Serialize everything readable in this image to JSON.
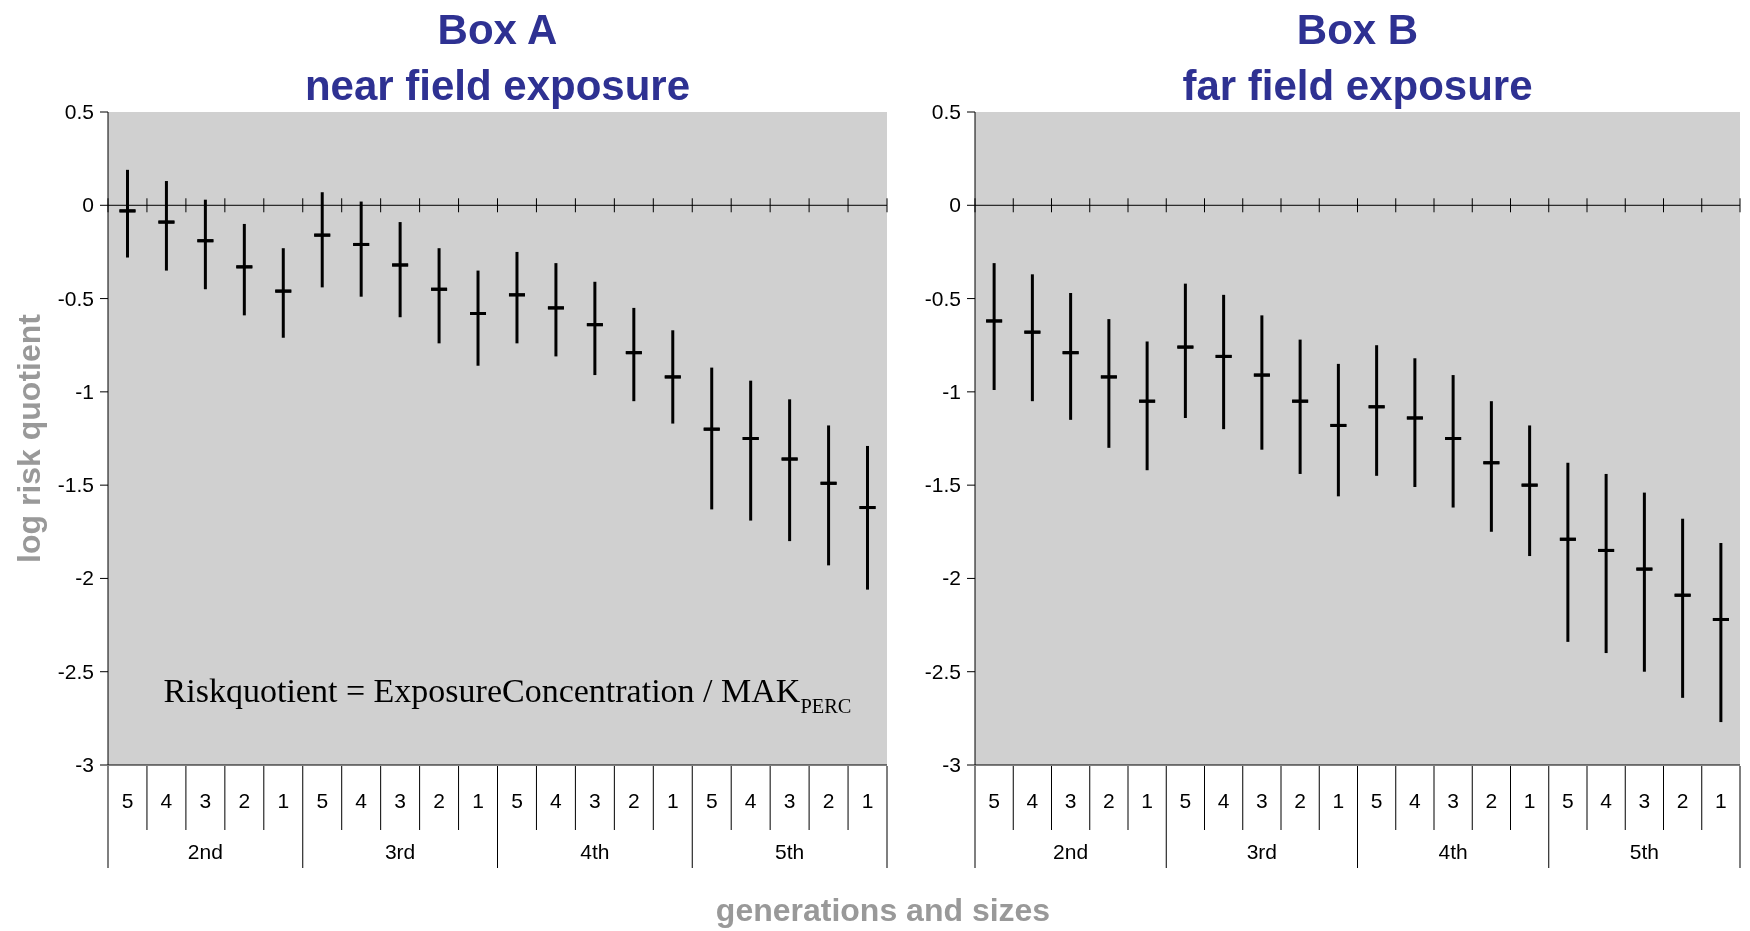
{
  "chart_data": [
    {
      "type": "box",
      "title": "Box A",
      "subtitle": "near field exposure",
      "ylabel": "log risk quotient",
      "xlabel": "generations and sizes",
      "categories": [
        "5",
        "4",
        "3",
        "2",
        "1",
        "5",
        "4",
        "3",
        "2",
        "1",
        "5",
        "4",
        "3",
        "2",
        "1",
        "5",
        "4",
        "3",
        "2",
        "1"
      ],
      "ylim": [
        -3,
        0.5
      ],
      "yticks": [
        -3,
        -2.5,
        -2,
        -1.5,
        -1,
        -0.5,
        0,
        0.5
      ],
      "color": "#000000",
      "annotations": [
        "2nd",
        "3rd",
        "4th",
        "5th",
        "Riskquotient = ExposureConcentration / MAK$_{PERC}$"
      ],
      "boxes": [
        {
          "low": -0.28,
          "q1": -0.03,
          "median": -0.03,
          "q3": -0.03,
          "high": 0.19
        },
        {
          "low": -0.35,
          "q1": -0.09,
          "median": -0.09,
          "q3": -0.09,
          "high": 0.13
        },
        {
          "low": -0.45,
          "q1": -0.19,
          "median": -0.19,
          "q3": -0.19,
          "high": 0.03
        },
        {
          "low": -0.59,
          "q1": -0.33,
          "median": -0.33,
          "q3": -0.33,
          "high": -0.1
        },
        {
          "low": -0.71,
          "q1": -0.46,
          "median": -0.46,
          "q3": -0.46,
          "high": -0.23
        },
        {
          "low": -0.44,
          "q1": -0.16,
          "median": -0.16,
          "q3": -0.16,
          "high": 0.07
        },
        {
          "low": -0.49,
          "q1": -0.21,
          "median": -0.21,
          "q3": -0.21,
          "high": 0.02
        },
        {
          "low": -0.6,
          "q1": -0.32,
          "median": -0.32,
          "q3": -0.32,
          "high": -0.09
        },
        {
          "low": -0.74,
          "q1": -0.45,
          "median": -0.45,
          "q3": -0.45,
          "high": -0.23
        },
        {
          "low": -0.86,
          "q1": -0.58,
          "median": -0.58,
          "q3": -0.58,
          "high": -0.35
        },
        {
          "low": -0.74,
          "q1": -0.48,
          "median": -0.48,
          "q3": -0.48,
          "high": -0.25
        },
        {
          "low": -0.81,
          "q1": -0.55,
          "median": -0.55,
          "q3": -0.55,
          "high": -0.31
        },
        {
          "low": -0.91,
          "q1": -0.64,
          "median": -0.64,
          "q3": -0.64,
          "high": -0.41
        },
        {
          "low": -1.05,
          "q1": -0.79,
          "median": -0.79,
          "q3": -0.79,
          "high": -0.55
        },
        {
          "low": -1.17,
          "q1": -0.92,
          "median": -0.92,
          "q3": -0.92,
          "high": -0.67
        },
        {
          "low": -1.63,
          "q1": -1.2,
          "median": -1.2,
          "q3": -1.2,
          "high": -0.87
        },
        {
          "low": -1.69,
          "q1": -1.25,
          "median": -1.25,
          "q3": -1.25,
          "high": -0.94
        },
        {
          "low": -1.8,
          "q1": -1.36,
          "median": -1.36,
          "q3": -1.36,
          "high": -1.04
        },
        {
          "low": -1.93,
          "q1": -1.49,
          "median": -1.49,
          "q3": -1.49,
          "high": -1.18
        },
        {
          "low": -2.06,
          "q1": -1.62,
          "median": -1.62,
          "q3": -1.62,
          "high": -1.29
        }
      ]
    },
    {
      "type": "box",
      "title": "Box B",
      "subtitle": "far field exposure",
      "categories": [
        "5",
        "4",
        "3",
        "2",
        "1",
        "5",
        "4",
        "3",
        "2",
        "1",
        "5",
        "4",
        "3",
        "2",
        "1",
        "5",
        "4",
        "3",
        "2",
        "1"
      ],
      "ylim": [
        -3,
        0.5
      ],
      "yticks": [
        -3,
        -2.5,
        -2,
        -1.5,
        -1,
        -0.5,
        0,
        0.5
      ],
      "color": "#000000",
      "annotations": [
        "2nd",
        "3rd",
        "4th",
        "5th"
      ],
      "boxes": [
        {
          "low": -0.99,
          "q1": -0.62,
          "median": -0.62,
          "q3": -0.62,
          "high": -0.31
        },
        {
          "low": -1.05,
          "q1": -0.68,
          "median": -0.68,
          "q3": -0.68,
          "high": -0.37
        },
        {
          "low": -1.15,
          "q1": -0.79,
          "median": -0.79,
          "q3": -0.79,
          "high": -0.47
        },
        {
          "low": -1.3,
          "q1": -0.92,
          "median": -0.92,
          "q3": -0.92,
          "high": -0.61
        },
        {
          "low": -1.42,
          "q1": -1.05,
          "median": -1.05,
          "q3": -1.05,
          "high": -0.73
        },
        {
          "low": -1.14,
          "q1": -0.76,
          "median": -0.76,
          "q3": -0.76,
          "high": -0.42
        },
        {
          "low": -1.2,
          "q1": -0.81,
          "median": -0.81,
          "q3": -0.81,
          "high": -0.48
        },
        {
          "low": -1.31,
          "q1": -0.91,
          "median": -0.91,
          "q3": -0.91,
          "high": -0.59
        },
        {
          "low": -1.44,
          "q1": -1.05,
          "median": -1.05,
          "q3": -1.05,
          "high": -0.72
        },
        {
          "low": -1.56,
          "q1": -1.18,
          "median": -1.18,
          "q3": -1.18,
          "high": -0.85
        },
        {
          "low": -1.45,
          "q1": -1.08,
          "median": -1.08,
          "q3": -1.08,
          "high": -0.75
        },
        {
          "low": -1.51,
          "q1": -1.14,
          "median": -1.14,
          "q3": -1.14,
          "high": -0.82
        },
        {
          "low": -1.62,
          "q1": -1.25,
          "median": -1.25,
          "q3": -1.25,
          "high": -0.91
        },
        {
          "low": -1.75,
          "q1": -1.38,
          "median": -1.38,
          "q3": -1.38,
          "high": -1.05
        },
        {
          "low": -1.88,
          "q1": -1.5,
          "median": -1.5,
          "q3": -1.5,
          "high": -1.18
        },
        {
          "low": -2.34,
          "q1": -1.79,
          "median": -1.79,
          "q3": -1.79,
          "high": -1.38
        },
        {
          "low": -2.4,
          "q1": -1.85,
          "median": -1.85,
          "q3": -1.85,
          "high": -1.44
        },
        {
          "low": -2.5,
          "q1": -1.95,
          "median": -1.95,
          "q3": -1.95,
          "high": -1.54
        },
        {
          "low": -2.64,
          "q1": -2.09,
          "median": -2.09,
          "q3": -2.09,
          "high": -1.68
        },
        {
          "low": -2.77,
          "q1": -2.22,
          "median": -2.22,
          "q3": -2.22,
          "high": -1.81
        }
      ]
    }
  ]
}
